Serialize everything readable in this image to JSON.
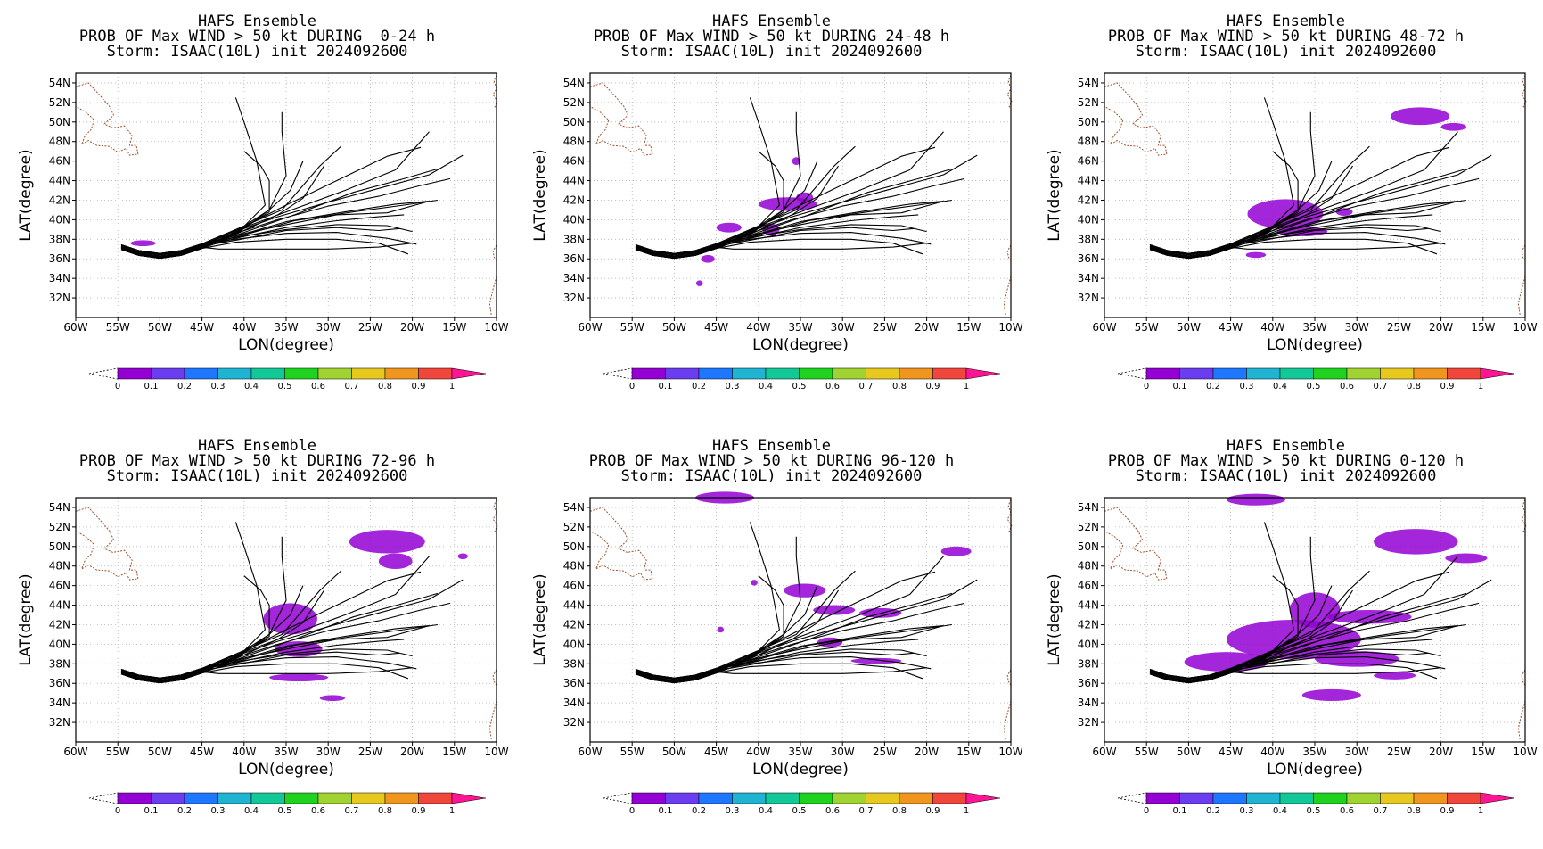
{
  "colors": {
    "track": "#000000",
    "coast": "#a0522d",
    "grid": "#b0b0b0",
    "prob_fill": "#9400d3",
    "colorbar": [
      "#9400d3",
      "#6a3df0",
      "#1e78ff",
      "#1eb4d2",
      "#12c896",
      "#1ed21e",
      "#a0d232",
      "#e6c81e",
      "#f0961e",
      "#f0463c",
      "#ff1493"
    ]
  },
  "colorbar": {
    "labels": [
      "0",
      "0.1",
      "0.2",
      "0.3",
      "0.4",
      "0.5",
      "0.6",
      "0.7",
      "0.8",
      "0.9",
      "1"
    ]
  },
  "chart_data": [
    {
      "type": "line",
      "title_lines": [
        "HAFS Ensemble",
        "PROB OF Max WIND > 50 kt DURING  0-24 h",
        "Storm: ISAAC(10L) init 2024092600"
      ],
      "xlabel": "LON(degree)",
      "ylabel": "LAT(degree)",
      "xlim": [
        -60,
        -10
      ],
      "ylim": [
        30,
        55
      ],
      "x_tick_labels": [
        "60W",
        "55W",
        "50W",
        "45W",
        "40W",
        "35W",
        "30W",
        "25W",
        "20W",
        "15W",
        "10W"
      ],
      "y_tick_labels": [
        "32N",
        "34N",
        "36N",
        "38N",
        "40N",
        "42N",
        "44N",
        "46N",
        "48N",
        "50N",
        "52N",
        "54N"
      ],
      "grid": true,
      "probability_regions": [
        {
          "lon": -52,
          "lat": 37.6,
          "rlon": 1.5,
          "rlat": 0.3,
          "prob": 0.05
        }
      ]
    },
    {
      "type": "line",
      "title_lines": [
        "HAFS Ensemble",
        "PROB OF Max WIND > 50 kt DURING 24-48 h",
        "Storm: ISAAC(10L) init 2024092600"
      ],
      "xlabel": "LON(degree)",
      "ylabel": "LAT(degree)",
      "xlim": [
        -60,
        -10
      ],
      "ylim": [
        30,
        55
      ],
      "x_tick_labels": [
        "60W",
        "55W",
        "50W",
        "45W",
        "40W",
        "35W",
        "30W",
        "25W",
        "20W",
        "15W",
        "10W"
      ],
      "y_tick_labels": [
        "32N",
        "34N",
        "36N",
        "38N",
        "40N",
        "42N",
        "44N",
        "46N",
        "48N",
        "50N",
        "52N",
        "54N"
      ],
      "grid": true,
      "probability_regions": [
        {
          "lon": -36.5,
          "lat": 41.6,
          "rlon": 3.5,
          "rlat": 0.7,
          "prob": 0.08
        },
        {
          "lon": -34.5,
          "lat": 42.3,
          "rlon": 1.0,
          "rlat": 0.5,
          "prob": 0.1
        },
        {
          "lon": -43.5,
          "lat": 39.2,
          "rlon": 1.5,
          "rlat": 0.5,
          "prob": 0.05
        },
        {
          "lon": -38.5,
          "lat": 39.0,
          "rlon": 1.0,
          "rlat": 0.6,
          "prob": 0.05
        },
        {
          "lon": -35.5,
          "lat": 46.0,
          "rlon": 0.5,
          "rlat": 0.4,
          "prob": 0.05
        },
        {
          "lon": -46.0,
          "lat": 36.0,
          "rlon": 0.8,
          "rlat": 0.4,
          "prob": 0.05
        },
        {
          "lon": -47.0,
          "lat": 33.5,
          "rlon": 0.4,
          "rlat": 0.3,
          "prob": 0.05
        }
      ]
    },
    {
      "type": "line",
      "title_lines": [
        "HAFS Ensemble",
        "PROB OF Max WIND > 50 kt DURING 48-72 h",
        "Storm: ISAAC(10L) init 2024092600"
      ],
      "xlabel": "LON(degree)",
      "ylabel": "LAT(degree)",
      "xlim": [
        -60,
        -10
      ],
      "ylim": [
        30,
        55
      ],
      "x_tick_labels": [
        "60W",
        "55W",
        "50W",
        "45W",
        "40W",
        "35W",
        "30W",
        "25W",
        "20W",
        "15W",
        "10W"
      ],
      "y_tick_labels": [
        "32N",
        "34N",
        "36N",
        "38N",
        "40N",
        "42N",
        "44N",
        "46N",
        "48N",
        "50N",
        "52N",
        "54N"
      ],
      "grid": true,
      "probability_regions": [
        {
          "lon": -38.5,
          "lat": 40.6,
          "rlon": 4.5,
          "rlat": 1.5,
          "prob": 0.1
        },
        {
          "lon": -36.5,
          "lat": 38.8,
          "rlon": 3.0,
          "rlat": 0.5,
          "prob": 0.05
        },
        {
          "lon": -22.5,
          "lat": 50.6,
          "rlon": 3.5,
          "rlat": 0.9,
          "prob": 0.08
        },
        {
          "lon": -18.5,
          "lat": 49.5,
          "rlon": 1.5,
          "rlat": 0.4,
          "prob": 0.05
        },
        {
          "lon": -42.0,
          "lat": 36.4,
          "rlon": 1.2,
          "rlat": 0.3,
          "prob": 0.05
        },
        {
          "lon": -31.5,
          "lat": 40.8,
          "rlon": 1.0,
          "rlat": 0.4,
          "prob": 0.05
        }
      ]
    },
    {
      "type": "line",
      "title_lines": [
        "HAFS Ensemble",
        "PROB OF Max WIND > 50 kt DURING 72-96 h",
        "Storm: ISAAC(10L) init 2024092600"
      ],
      "xlabel": "LON(degree)",
      "ylabel": "LAT(degree)",
      "xlim": [
        -60,
        -10
      ],
      "ylim": [
        30,
        55
      ],
      "x_tick_labels": [
        "60W",
        "55W",
        "50W",
        "45W",
        "40W",
        "35W",
        "30W",
        "25W",
        "20W",
        "15W",
        "10W"
      ],
      "y_tick_labels": [
        "32N",
        "34N",
        "36N",
        "38N",
        "40N",
        "42N",
        "44N",
        "46N",
        "48N",
        "50N",
        "52N",
        "54N"
      ],
      "grid": true,
      "probability_regions": [
        {
          "lon": -34.5,
          "lat": 42.6,
          "rlon": 3.2,
          "rlat": 1.6,
          "prob": 0.1
        },
        {
          "lon": -33.5,
          "lat": 39.5,
          "rlon": 2.8,
          "rlat": 0.8,
          "prob": 0.08
        },
        {
          "lon": -23.0,
          "lat": 50.5,
          "rlon": 4.5,
          "rlat": 1.2,
          "prob": 0.1
        },
        {
          "lon": -22.0,
          "lat": 48.5,
          "rlon": 2.0,
          "rlat": 0.8,
          "prob": 0.08
        },
        {
          "lon": -33.5,
          "lat": 36.6,
          "rlon": 3.5,
          "rlat": 0.4,
          "prob": 0.05
        },
        {
          "lon": -29.5,
          "lat": 34.5,
          "rlon": 1.5,
          "rlat": 0.3,
          "prob": 0.05
        },
        {
          "lon": -14.0,
          "lat": 49.0,
          "rlon": 0.6,
          "rlat": 0.3,
          "prob": 0.05
        }
      ]
    },
    {
      "type": "line",
      "title_lines": [
        "HAFS Ensemble",
        "PROB OF Max WIND > 50 kt DURING 96-120 h",
        "Storm: ISAAC(10L) init 2024092600"
      ],
      "xlabel": "LON(degree)",
      "ylabel": "LAT(degree)",
      "xlim": [
        -60,
        -10
      ],
      "ylim": [
        30,
        55
      ],
      "x_tick_labels": [
        "60W",
        "55W",
        "50W",
        "45W",
        "40W",
        "35W",
        "30W",
        "25W",
        "20W",
        "15W",
        "10W"
      ],
      "y_tick_labels": [
        "32N",
        "34N",
        "36N",
        "38N",
        "40N",
        "42N",
        "44N",
        "46N",
        "48N",
        "50N",
        "52N",
        "54N"
      ],
      "grid": true,
      "probability_regions": [
        {
          "lon": -34.5,
          "lat": 45.5,
          "rlon": 2.5,
          "rlat": 0.7,
          "prob": 0.08
        },
        {
          "lon": -31.0,
          "lat": 43.5,
          "rlon": 2.5,
          "rlat": 0.5,
          "prob": 0.08
        },
        {
          "lon": -25.5,
          "lat": 43.2,
          "rlon": 2.5,
          "rlat": 0.5,
          "prob": 0.08
        },
        {
          "lon": -31.5,
          "lat": 40.2,
          "rlon": 1.5,
          "rlat": 0.5,
          "prob": 0.05
        },
        {
          "lon": -26.0,
          "lat": 38.3,
          "rlon": 3.0,
          "rlat": 0.3,
          "prob": 0.05
        },
        {
          "lon": -44.0,
          "lat": 55.0,
          "rlon": 3.5,
          "rlat": 0.6,
          "prob": 0.05
        },
        {
          "lon": -16.5,
          "lat": 49.5,
          "rlon": 1.8,
          "rlat": 0.5,
          "prob": 0.05
        },
        {
          "lon": -44.5,
          "lat": 41.5,
          "rlon": 0.4,
          "rlat": 0.3,
          "prob": 0.05
        },
        {
          "lon": -40.5,
          "lat": 46.3,
          "rlon": 0.4,
          "rlat": 0.3,
          "prob": 0.05
        }
      ]
    },
    {
      "type": "line",
      "title_lines": [
        "HAFS Ensemble",
        "PROB OF Max WIND > 50 kt DURING 0-120 h",
        "Storm: ISAAC(10L) init 2024092600"
      ],
      "xlabel": "LON(degree)",
      "ylabel": "LAT(degree)",
      "xlim": [
        -60,
        -10
      ],
      "ylim": [
        30,
        55
      ],
      "x_tick_labels": [
        "60W",
        "55W",
        "50W",
        "45W",
        "40W",
        "35W",
        "30W",
        "25W",
        "20W",
        "15W",
        "10W"
      ],
      "y_tick_labels": [
        "32N",
        "34N",
        "36N",
        "38N",
        "40N",
        "42N",
        "44N",
        "46N",
        "48N",
        "50N",
        "52N",
        "54N"
      ],
      "grid": true,
      "probability_regions": [
        {
          "lon": -37.5,
          "lat": 40.5,
          "rlon": 8.0,
          "rlat": 2.0,
          "prob": 0.12
        },
        {
          "lon": -35.0,
          "lat": 43.5,
          "rlon": 3.0,
          "rlat": 1.8,
          "prob": 0.12
        },
        {
          "lon": -45.5,
          "lat": 38.2,
          "rlon": 5.0,
          "rlat": 1.0,
          "prob": 0.08
        },
        {
          "lon": -30.0,
          "lat": 38.5,
          "rlon": 5.0,
          "rlat": 0.8,
          "prob": 0.08
        },
        {
          "lon": -23.0,
          "lat": 50.5,
          "rlon": 5.0,
          "rlat": 1.3,
          "prob": 0.12
        },
        {
          "lon": -17.0,
          "lat": 48.8,
          "rlon": 2.5,
          "rlat": 0.5,
          "prob": 0.05
        },
        {
          "lon": -42.0,
          "lat": 54.8,
          "rlon": 3.5,
          "rlat": 0.6,
          "prob": 0.05
        },
        {
          "lon": -28.5,
          "lat": 42.8,
          "rlon": 5.0,
          "rlat": 0.7,
          "prob": 0.08
        },
        {
          "lon": -33.0,
          "lat": 34.8,
          "rlon": 3.5,
          "rlat": 0.6,
          "prob": 0.05
        },
        {
          "lon": -25.5,
          "lat": 36.8,
          "rlon": 2.5,
          "rlat": 0.4,
          "prob": 0.05
        }
      ]
    }
  ]
}
